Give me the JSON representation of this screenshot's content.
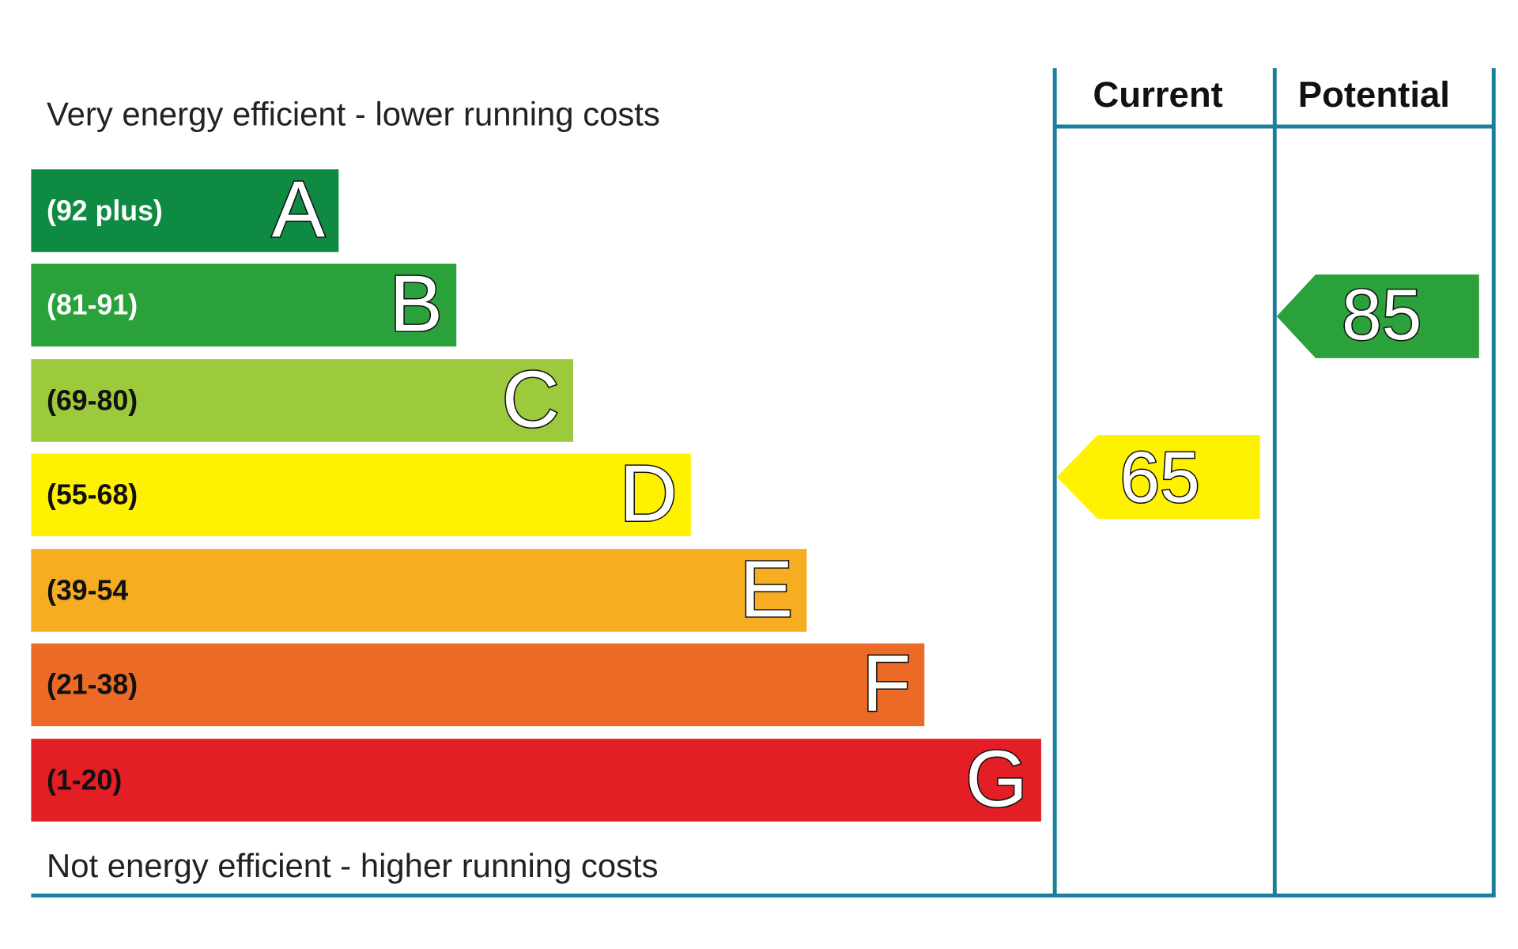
{
  "header": {
    "top_label": "Very energy efficient - lower running costs",
    "bottom_label": "Not energy efficient - higher running costs"
  },
  "columns": [
    "Current",
    "Potential"
  ],
  "bands": [
    {
      "range": "(92 plus)",
      "letter": "A"
    },
    {
      "range": "(81-91)",
      "letter": "B"
    },
    {
      "range": "(69-80)",
      "letter": "C"
    },
    {
      "range": "(55-68)",
      "letter": "D"
    },
    {
      "range": "(39-54",
      "letter": "E"
    },
    {
      "range": "(21-38)",
      "letter": "F"
    },
    {
      "range": "(1-20)",
      "letter": "G"
    }
  ],
  "ratings": {
    "current": 65,
    "potential": 85
  }
}
